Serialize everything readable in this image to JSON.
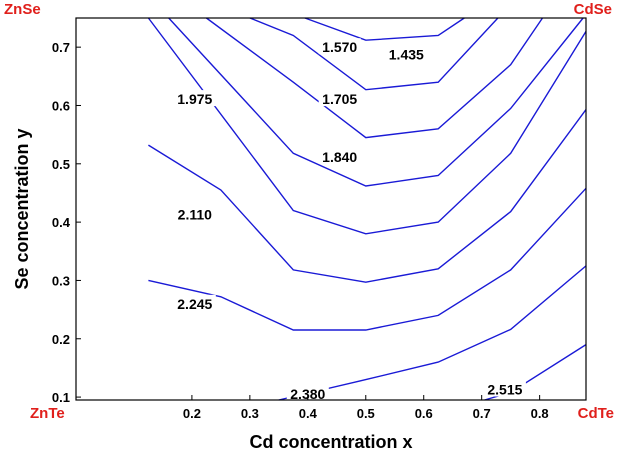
{
  "chart_data": {
    "type": "line",
    "subtype": "contour",
    "xlabel": "Cd concentration x",
    "ylabel": "Se concentration y",
    "xlim": [
      0.0,
      0.88
    ],
    "ylim": [
      0.095,
      0.75
    ],
    "x_ticks": [
      0.2,
      0.3,
      0.4,
      0.5,
      0.6,
      0.7,
      0.8
    ],
    "y_ticks": [
      0.1,
      0.2,
      0.3,
      0.4,
      0.5,
      0.6,
      0.7
    ],
    "x_tick_labels": [
      "0.2",
      "0.3",
      "0.4",
      "0.5",
      "0.6",
      "0.7",
      "0.8"
    ],
    "y_tick_labels": [
      "0.1",
      "0.2",
      "0.3",
      "0.4",
      "0.5",
      "0.6",
      "0.7"
    ],
    "corner_labels": {
      "top_left": "ZnSe",
      "top_right": "CdSe",
      "bottom_left": "ZnTe",
      "bottom_right": "CdTe"
    },
    "colors": {
      "contour": "#1a1ad6",
      "corner": "#e0201c",
      "axis": "#000000"
    },
    "grid": false,
    "series": [
      {
        "name": "1.435",
        "points": [
          [
            0.395,
            0.75
          ],
          [
            0.5,
            0.712
          ],
          [
            0.625,
            0.72
          ],
          [
            0.67,
            0.75
          ]
        ]
      },
      {
        "name": "1.570",
        "points": [
          [
            0.3,
            0.75
          ],
          [
            0.375,
            0.72
          ],
          [
            0.5,
            0.627
          ],
          [
            0.625,
            0.64
          ],
          [
            0.728,
            0.75
          ]
        ]
      },
      {
        "name": "1.705",
        "points": [
          [
            0.225,
            0.75
          ],
          [
            0.375,
            0.64
          ],
          [
            0.5,
            0.545
          ],
          [
            0.625,
            0.56
          ],
          [
            0.75,
            0.67
          ],
          [
            0.805,
            0.75
          ]
        ]
      },
      {
        "name": "1.840",
        "points": [
          [
            0.16,
            0.75
          ],
          [
            0.375,
            0.518
          ],
          [
            0.5,
            0.462
          ],
          [
            0.625,
            0.48
          ],
          [
            0.75,
            0.595
          ],
          [
            0.875,
            0.75
          ]
        ]
      },
      {
        "name": "1.975",
        "points": [
          [
            0.125,
            0.75
          ],
          [
            0.375,
            0.42
          ],
          [
            0.5,
            0.38
          ],
          [
            0.625,
            0.4
          ],
          [
            0.75,
            0.518
          ],
          [
            0.88,
            0.727
          ]
        ]
      },
      {
        "name": "2.110",
        "points": [
          [
            0.125,
            0.532
          ],
          [
            0.25,
            0.455
          ],
          [
            0.375,
            0.318
          ],
          [
            0.5,
            0.297
          ],
          [
            0.625,
            0.32
          ],
          [
            0.75,
            0.418
          ],
          [
            0.88,
            0.593
          ]
        ]
      },
      {
        "name": "2.245",
        "points": [
          [
            0.125,
            0.3
          ],
          [
            0.25,
            0.272
          ],
          [
            0.375,
            0.215
          ],
          [
            0.5,
            0.215
          ],
          [
            0.625,
            0.24
          ],
          [
            0.75,
            0.318
          ],
          [
            0.88,
            0.458
          ]
        ]
      },
      {
        "name": "2.380",
        "points": [
          [
            0.35,
            0.095
          ],
          [
            0.5,
            0.13
          ],
          [
            0.625,
            0.16
          ],
          [
            0.75,
            0.216
          ],
          [
            0.88,
            0.325
          ]
        ]
      },
      {
        "name": "2.515",
        "points": [
          [
            0.705,
            0.095
          ],
          [
            0.75,
            0.108
          ],
          [
            0.88,
            0.19
          ]
        ]
      }
    ],
    "contour_labels": [
      {
        "text": "1.570",
        "x": 0.455,
        "y": 0.7
      },
      {
        "text": "1.435",
        "x": 0.57,
        "y": 0.687
      },
      {
        "text": "1.975",
        "x": 0.205,
        "y": 0.611
      },
      {
        "text": "1.705",
        "x": 0.455,
        "y": 0.611
      },
      {
        "text": "1.840",
        "x": 0.455,
        "y": 0.512
      },
      {
        "text": "2.110",
        "x": 0.205,
        "y": 0.413
      },
      {
        "text": "2.245",
        "x": 0.205,
        "y": 0.26
      },
      {
        "text": "2.380",
        "x": 0.4,
        "y": 0.105
      },
      {
        "text": "2.515",
        "x": 0.74,
        "y": 0.113
      }
    ]
  }
}
